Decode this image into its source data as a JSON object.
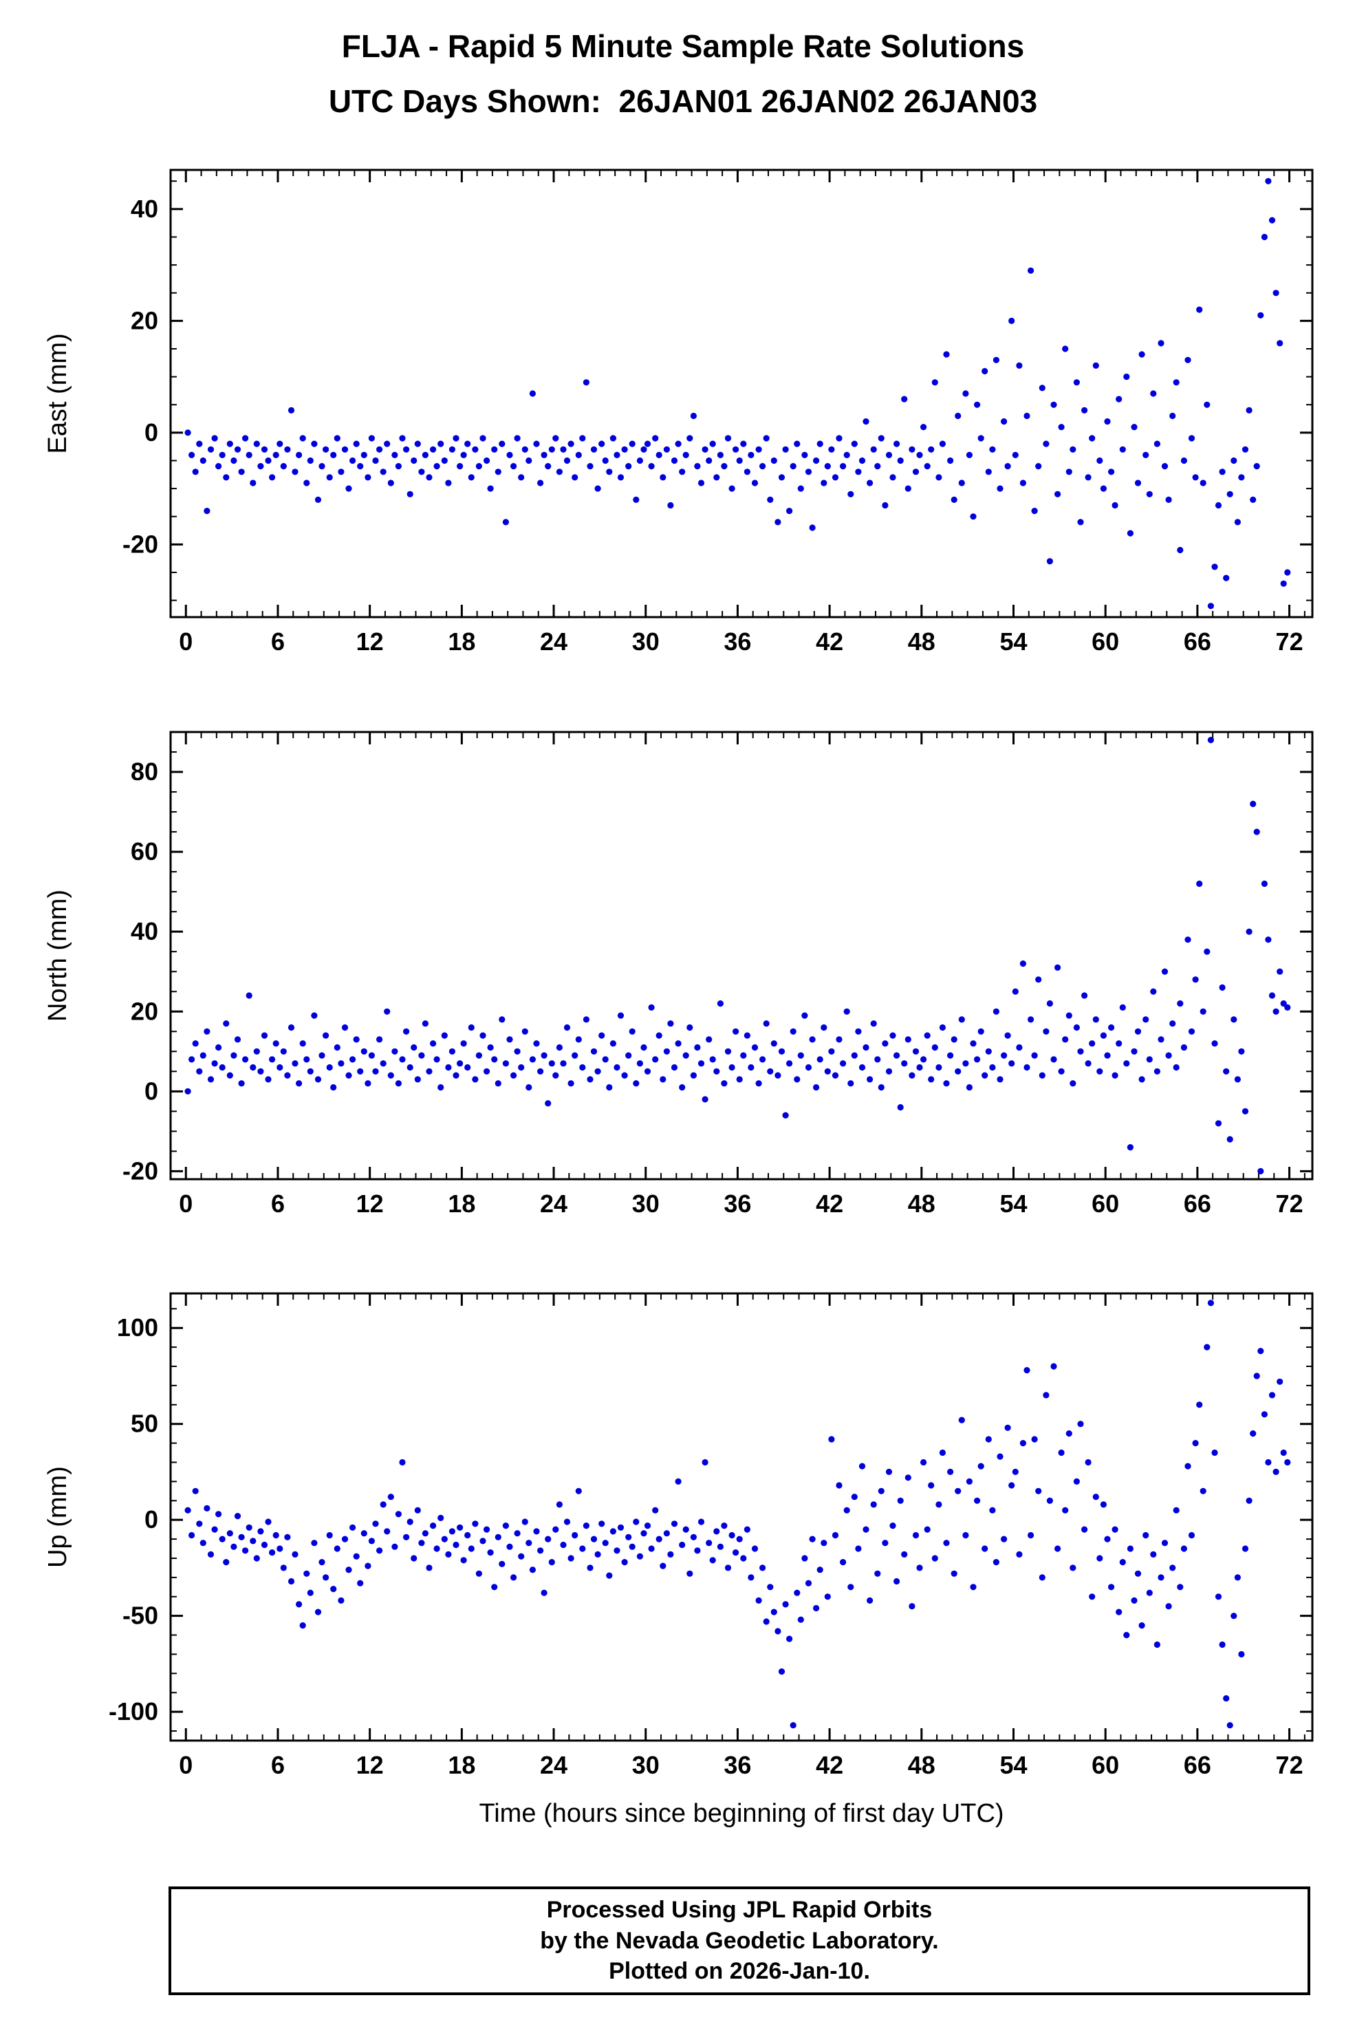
{
  "page": {
    "title": "FLJA - Rapid 5 Minute Sample Rate Solutions",
    "subtitle": "UTC Days Shown:  26JAN01 26JAN02 26JAN03",
    "footer_lines": [
      "Processed Using JPL Rapid Orbits",
      "by the Nevada Geodetic Laboratory.",
      "Plotted on 2026-Jan-10."
    ]
  },
  "chart_data": {
    "type": "scatter",
    "title": "FLJA - Rapid 5 Minute Sample Rate Solutions",
    "subtitle": "UTC Days Shown:  26JAN01 26JAN02 26JAN03",
    "xlabel": "Time (hours since beginning of first day UTC)",
    "x_range": [
      0,
      72
    ],
    "x_major_tick": 6,
    "x_minor_tick": 1,
    "point_color": "#0000DD",
    "frame_color": "#000000",
    "grid": false,
    "legend": "none",
    "x_start": 0.125,
    "x_step": 0.25,
    "panels": [
      {
        "name": "East",
        "ylabel": "East (mm)",
        "ylim": [
          -33,
          47
        ],
        "yticks": [
          -20,
          0,
          20,
          40
        ],
        "y_minor_tick": 5,
        "show_xlabel_title": false,
        "y": [
          0,
          -4,
          -7,
          -2,
          -5,
          -14,
          -3,
          -1,
          -6,
          -4,
          -8,
          -2,
          -5,
          -3,
          -7,
          -1,
          -4,
          -9,
          -2,
          -6,
          -3,
          -5,
          -8,
          -4,
          -2,
          -6,
          -3,
          4,
          -7,
          -4,
          -1,
          -9,
          -5,
          -2,
          -12,
          -6,
          -3,
          -8,
          -4,
          -1,
          -7,
          -3,
          -10,
          -5,
          -2,
          -6,
          -4,
          -8,
          -1,
          -5,
          -3,
          -7,
          -2,
          -9,
          -4,
          -6,
          -1,
          -3,
          -11,
          -5,
          -2,
          -7,
          -4,
          -8,
          -3,
          -6,
          -2,
          -5,
          -9,
          -3,
          -1,
          -6,
          -4,
          -2,
          -8,
          -3,
          -6,
          -1,
          -5,
          -10,
          -3,
          -7,
          -2,
          -16,
          -4,
          -6,
          -1,
          -8,
          -3,
          -5,
          7,
          -2,
          -9,
          -4,
          -6,
          -3,
          -1,
          -7,
          -3,
          -5,
          -2,
          -8,
          -4,
          -1,
          9,
          -6,
          -3,
          -10,
          -2,
          -5,
          -7,
          -1,
          -4,
          -8,
          -3,
          -6,
          -2,
          -12,
          -5,
          -3,
          -2,
          -6,
          -1,
          -4,
          -8,
          -3,
          -13,
          -5,
          -2,
          -7,
          -4,
          -1,
          3,
          -6,
          -9,
          -3,
          -5,
          -2,
          -8,
          -4,
          -6,
          -1,
          -10,
          -3,
          -5,
          -2,
          -7,
          -4,
          -9,
          -3,
          -6,
          -1,
          -12,
          -5,
          -16,
          -8,
          -3,
          -14,
          -6,
          -2,
          -10,
          -4,
          -7,
          -17,
          -5,
          -2,
          -9,
          -6,
          -3,
          -8,
          -1,
          -6,
          -4,
          -11,
          -2,
          -7,
          -5,
          2,
          -9,
          -3,
          -6,
          -1,
          -13,
          -4,
          -8,
          -2,
          -5,
          6,
          -10,
          -3,
          -7,
          -4,
          1,
          -6,
          -3,
          9,
          -8,
          -2,
          14,
          -5,
          -12,
          3,
          -9,
          7,
          -4,
          -15,
          5,
          -1,
          11,
          -7,
          -3,
          13,
          -10,
          2,
          -6,
          20,
          -4,
          12,
          -9,
          3,
          29,
          -14,
          -6,
          8,
          -2,
          -23,
          5,
          -11,
          1,
          15,
          -7,
          -3,
          9,
          -16,
          4,
          -8,
          -1,
          12,
          -5,
          -10,
          2,
          -7,
          -13,
          6,
          -3,
          10,
          -18,
          1,
          -9,
          14,
          -4,
          -11,
          7,
          -2,
          16,
          -6,
          -12,
          3,
          9,
          -21,
          -5,
          13,
          -1,
          -8,
          22,
          -9,
          5,
          -31,
          -24,
          -13,
          -7,
          -26,
          -11,
          -5,
          -16,
          -8,
          -3,
          4,
          -12,
          -6,
          21,
          35,
          45,
          38,
          25,
          16,
          -27,
          -25
        ]
      },
      {
        "name": "North",
        "ylabel": "North (mm)",
        "ylim": [
          -22,
          90
        ],
        "yticks": [
          -20,
          0,
          20,
          40,
          60,
          80
        ],
        "y_minor_tick": 5,
        "show_xlabel_title": false,
        "y": [
          0,
          8,
          12,
          5,
          9,
          15,
          3,
          7,
          11,
          6,
          17,
          4,
          9,
          13,
          2,
          8,
          24,
          6,
          10,
          5,
          14,
          3,
          8,
          12,
          6,
          10,
          4,
          16,
          7,
          2,
          12,
          8,
          5,
          19,
          3,
          9,
          14,
          6,
          1,
          11,
          7,
          16,
          4,
          8,
          13,
          5,
          10,
          2,
          9,
          5,
          13,
          7,
          20,
          4,
          10,
          2,
          8,
          15,
          6,
          11,
          3,
          9,
          17,
          5,
          12,
          8,
          1,
          14,
          6,
          10,
          4,
          7,
          12,
          6,
          16,
          3,
          9,
          14,
          5,
          11,
          8,
          2,
          18,
          7,
          13,
          4,
          10,
          6,
          15,
          1,
          8,
          12,
          5,
          9,
          -3,
          7,
          4,
          11,
          7,
          16,
          2,
          9,
          13,
          6,
          18,
          3,
          10,
          5,
          14,
          8,
          1,
          12,
          6,
          19,
          4,
          9,
          15,
          2,
          7,
          11,
          5,
          21,
          8,
          14,
          3,
          10,
          17,
          6,
          12,
          1,
          9,
          16,
          4,
          11,
          7,
          -2,
          13,
          8,
          5,
          22,
          2,
          10,
          6,
          15,
          3,
          9,
          14,
          6,
          11,
          2,
          8,
          17,
          5,
          12,
          4,
          10,
          -6,
          7,
          15,
          3,
          9,
          19,
          6,
          13,
          1,
          8,
          16,
          5,
          10,
          4,
          13,
          7,
          20,
          2,
          9,
          15,
          6,
          11,
          3,
          17,
          8,
          1,
          12,
          5,
          14,
          9,
          -4,
          7,
          13,
          4,
          10,
          6,
          8,
          14,
          3,
          11,
          6,
          16,
          2,
          9,
          13,
          5,
          18,
          7,
          1,
          12,
          8,
          15,
          4,
          10,
          6,
          20,
          3,
          9,
          14,
          7,
          25,
          11,
          32,
          6,
          18,
          9,
          28,
          4,
          15,
          22,
          8,
          31,
          5,
          13,
          19,
          2,
          16,
          10,
          24,
          7,
          12,
          18,
          5,
          14,
          9,
          16,
          4,
          12,
          21,
          7,
          -14,
          10,
          15,
          3,
          18,
          8,
          25,
          5,
          13,
          30,
          9,
          17,
          6,
          22,
          11,
          38,
          15,
          28,
          52,
          20,
          35,
          88,
          12,
          -8,
          26,
          5,
          -12,
          18,
          3,
          10,
          -5,
          40,
          72,
          65,
          -20,
          52,
          38,
          24,
          20,
          30,
          22,
          21
        ]
      },
      {
        "name": "Up",
        "ylabel": "Up (mm)",
        "ylim": [
          -115,
          118
        ],
        "yticks": [
          -100,
          -50,
          0,
          50,
          100
        ],
        "y_minor_tick": 10,
        "show_xlabel_title": true,
        "y": [
          5,
          -8,
          15,
          -2,
          -12,
          6,
          -18,
          -5,
          3,
          -10,
          -22,
          -7,
          -14,
          2,
          -9,
          -16,
          -4,
          -11,
          -20,
          -6,
          -13,
          -1,
          -17,
          -8,
          -15,
          -25,
          -9,
          -32,
          -18,
          -44,
          -55,
          -28,
          -38,
          -12,
          -48,
          -22,
          -30,
          -8,
          -36,
          -15,
          -42,
          -10,
          -26,
          -4,
          -19,
          -33,
          -7,
          -24,
          -11,
          -2,
          -16,
          8,
          -6,
          12,
          -14,
          3,
          30,
          -9,
          -1,
          -20,
          5,
          -12,
          -7,
          -25,
          -3,
          -15,
          1,
          -10,
          -18,
          -6,
          -13,
          -4,
          -21,
          -8,
          -15,
          -2,
          -28,
          -11,
          -5,
          -17,
          -35,
          -9,
          -23,
          -3,
          -14,
          -30,
          -7,
          -19,
          -1,
          -12,
          -26,
          -6,
          -16,
          -38,
          -10,
          -22,
          -5,
          8,
          -13,
          -1,
          -20,
          -8,
          15,
          -15,
          -3,
          -25,
          -10,
          -18,
          -2,
          -12,
          -29,
          -6,
          -16,
          -4,
          -22,
          -9,
          -14,
          -1,
          -19,
          -7,
          -3,
          -15,
          5,
          -10,
          -24,
          -7,
          -18,
          -2,
          20,
          -13,
          -5,
          -28,
          -9,
          -16,
          -1,
          30,
          -12,
          -21,
          -6,
          -14,
          -3,
          -25,
          -8,
          -17,
          -10,
          -20,
          -5,
          -30,
          -15,
          -42,
          -25,
          -53,
          -35,
          -48,
          -58,
          -79,
          -44,
          -62,
          -107,
          -38,
          -52,
          -20,
          -33,
          -10,
          -46,
          -26,
          -12,
          -40,
          42,
          -8,
          18,
          -22,
          5,
          -35,
          12,
          -15,
          28,
          -5,
          -42,
          8,
          -28,
          15,
          -12,
          25,
          -3,
          -32,
          10,
          -18,
          22,
          -45,
          -8,
          -25,
          30,
          -5,
          18,
          -20,
          8,
          35,
          -12,
          25,
          -28,
          15,
          52,
          -8,
          20,
          -35,
          10,
          28,
          -15,
          42,
          5,
          -22,
          33,
          -10,
          48,
          18,
          25,
          -18,
          40,
          78,
          -8,
          42,
          15,
          -30,
          65,
          10,
          80,
          -15,
          35,
          5,
          45,
          -25,
          20,
          50,
          -5,
          30,
          -40,
          12,
          -20,
          8,
          -10,
          -35,
          -5,
          -48,
          -22,
          -60,
          -15,
          -42,
          -28,
          -55,
          -8,
          -38,
          -18,
          -65,
          -30,
          -12,
          -45,
          -25,
          5,
          -35,
          -15,
          28,
          -8,
          40,
          60,
          15,
          90,
          113,
          35,
          -40,
          -65,
          -93,
          -107,
          -50,
          -30,
          -70,
          -15,
          10,
          45,
          75,
          88,
          55,
          30,
          65,
          25,
          72,
          35,
          30
        ]
      }
    ]
  }
}
